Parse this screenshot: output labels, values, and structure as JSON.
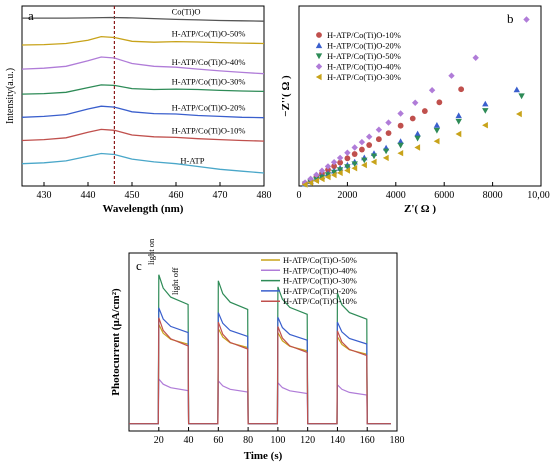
{
  "chart_data": [
    {
      "panel": "a",
      "type": "line",
      "xlabel": "Wavelength (nm)",
      "ylabel": "Intensity(a.u.)",
      "xlim": [
        425,
        480
      ],
      "xticks": [
        430,
        440,
        450,
        460,
        470,
        480
      ],
      "marker_line_x": 446,
      "series": [
        {
          "name": "Co(Ti)O",
          "color": "#555555",
          "x": [
            425,
            430,
            435,
            440,
            445,
            450,
            455,
            460,
            465,
            470,
            475,
            480
          ],
          "y": [
            9.55,
            9.55,
            9.55,
            9.56,
            9.58,
            9.56,
            9.52,
            9.48,
            9.45,
            9.42,
            9.4,
            9.38
          ]
        },
        {
          "name": "H-ATP/Co(Ti)O-50%",
          "color": "#c8a31a",
          "x": [
            425,
            430,
            435,
            440,
            443,
            446,
            450,
            455,
            460,
            465,
            470,
            475,
            480
          ],
          "y": [
            8.1,
            8.12,
            8.18,
            8.35,
            8.55,
            8.5,
            8.3,
            8.25,
            8.28,
            8.26,
            8.23,
            8.2,
            8.18
          ]
        },
        {
          "name": "H-ATP/Co(Ti)O-40%",
          "color": "#b07cd8",
          "x": [
            425,
            430,
            435,
            440,
            443,
            446,
            450,
            455,
            460,
            465,
            470,
            475,
            480
          ],
          "y": [
            6.8,
            6.85,
            6.95,
            7.25,
            7.45,
            7.4,
            7.1,
            6.95,
            6.9,
            6.8,
            6.7,
            6.62,
            6.55
          ]
        },
        {
          "name": "H-ATP/Co(Ti)O-30%",
          "color": "#2e8b57",
          "x": [
            425,
            430,
            435,
            440,
            443,
            446,
            450,
            455,
            460,
            465,
            470,
            475,
            480
          ],
          "y": [
            5.45,
            5.48,
            5.55,
            5.8,
            5.95,
            5.92,
            5.75,
            5.7,
            5.72,
            5.7,
            5.65,
            5.62,
            5.6
          ]
        },
        {
          "name": "H-ATP/Co(Ti)O-20%",
          "color": "#3a5fcd",
          "x": [
            425,
            430,
            435,
            440,
            443,
            446,
            450,
            455,
            460,
            465,
            470,
            475,
            480
          ],
          "y": [
            4.2,
            4.25,
            4.35,
            4.65,
            4.8,
            4.75,
            4.5,
            4.4,
            4.38,
            4.3,
            4.25,
            4.2,
            4.18
          ]
        },
        {
          "name": "H-ATP/Co(Ti)O-10%",
          "color": "#c0504d",
          "x": [
            425,
            430,
            435,
            440,
            443,
            446,
            450,
            455,
            460,
            465,
            470,
            475,
            480
          ],
          "y": [
            2.95,
            3.0,
            3.1,
            3.4,
            3.55,
            3.5,
            3.25,
            3.15,
            3.12,
            3.05,
            3.0,
            2.95,
            2.92
          ]
        },
        {
          "name": "H-ATP",
          "color": "#4aa7c9",
          "x": [
            425,
            430,
            435,
            440,
            443,
            446,
            450,
            455,
            460,
            465,
            470,
            475,
            480
          ],
          "y": [
            1.7,
            1.75,
            1.85,
            2.1,
            2.25,
            2.2,
            1.95,
            1.8,
            1.7,
            1.55,
            1.4,
            1.3,
            1.2
          ]
        }
      ]
    },
    {
      "panel": "b",
      "type": "scatter",
      "xlabel": "Z'( Ω )",
      "ylabel": "−Z''( Ω )",
      "xlim": [
        0,
        10000
      ],
      "xticks": [
        0,
        2000,
        4000,
        6000,
        8000,
        10000
      ],
      "xticklabels": [
        "0",
        "2000",
        "4000",
        "6000",
        "8000",
        "10,000"
      ],
      "legend_position": "top-left",
      "series": [
        {
          "name": "H-ATP/Co(Ti)O-10%",
          "marker": "circle",
          "color": "#c0504d",
          "x": [
            250,
            480,
            720,
            950,
            1200,
            1450,
            1700,
            2000,
            2300,
            2600,
            2900,
            3300,
            3700,
            4200,
            4700,
            5200,
            5800,
            6700
          ],
          "y": [
            120,
            260,
            420,
            560,
            720,
            880,
            1040,
            1230,
            1420,
            1620,
            1820,
            2080,
            2350,
            2680,
            3000,
            3330,
            3720,
            4300
          ]
        },
        {
          "name": "H-ATP/Co(Ti)O-20%",
          "marker": "triangle-up",
          "color": "#3a5fcd",
          "x": [
            250,
            480,
            720,
            950,
            1200,
            1450,
            1700,
            2000,
            2300,
            2700,
            3100,
            3600,
            4200,
            4900,
            5700,
            6600,
            7700,
            9000
          ],
          "y": [
            90,
            200,
            320,
            430,
            550,
            670,
            790,
            930,
            1070,
            1260,
            1450,
            1690,
            1980,
            2320,
            2700,
            3130,
            3650,
            4280
          ]
        },
        {
          "name": "H-ATP/Co(Ti)O-50%",
          "marker": "triangle-down",
          "color": "#2e8b57",
          "x": [
            250,
            480,
            720,
            950,
            1200,
            1450,
            1700,
            2000,
            2300,
            2700,
            3100,
            3600,
            4200,
            4900,
            5700,
            6600,
            7700,
            9200
          ],
          "y": [
            80,
            180,
            290,
            390,
            500,
            610,
            720,
            850,
            980,
            1150,
            1330,
            1550,
            1810,
            2120,
            2470,
            2870,
            3350,
            4000
          ]
        },
        {
          "name": "H-ATP/Co(Ti)O-40%",
          "marker": "diamond",
          "color": "#b07cd8",
          "x": [
            250,
            480,
            720,
            950,
            1200,
            1450,
            1700,
            2000,
            2300,
            2600,
            2900,
            3300,
            3700,
            4200,
            4800,
            5500,
            6300,
            7300,
            9400
          ],
          "y": [
            150,
            320,
            500,
            680,
            870,
            1060,
            1250,
            1480,
            1710,
            1950,
            2190,
            2500,
            2820,
            3220,
            3700,
            4260,
            4900,
            5700,
            7400
          ]
        },
        {
          "name": "H-ATP/Co(Ti)O-30%",
          "marker": "triangle-left",
          "color": "#c8a31a",
          "x": [
            250,
            480,
            720,
            950,
            1200,
            1450,
            1700,
            2000,
            2300,
            2700,
            3100,
            3600,
            4200,
            4900,
            5700,
            6600,
            7700,
            9100
          ],
          "y": [
            60,
            140,
            230,
            310,
            400,
            490,
            580,
            690,
            790,
            930,
            1070,
            1250,
            1460,
            1710,
            1990,
            2310,
            2700,
            3200
          ]
        }
      ]
    },
    {
      "panel": "c",
      "type": "line",
      "xlabel": "Time (s)",
      "ylabel": "Photocurrent (μA/cm²)",
      "xlim": [
        0,
        180
      ],
      "xticks": [
        20,
        40,
        60,
        80,
        100,
        120,
        140,
        160,
        180
      ],
      "annotations": [
        "light on",
        "light off"
      ],
      "legend_position": "top-right",
      "on_intervals": [
        [
          20,
          40
        ],
        [
          60,
          80
        ],
        [
          100,
          120
        ],
        [
          140,
          160
        ]
      ],
      "series": [
        {
          "name": "H-ATP/Co(Ti)O-50%",
          "color": "#c8a31a",
          "peak": 0.62,
          "plateau": 0.5
        },
        {
          "name": "H-ATP/Co(Ti)O-40%",
          "color": "#b07cd8",
          "peak": 0.29,
          "plateau": 0.22
        },
        {
          "name": "H-ATP/Co(Ti)O-30%",
          "color": "#2e8b57",
          "peak": 0.92,
          "plateau": 0.74
        },
        {
          "name": "H-ATP/Co(Ti)O-20%",
          "color": "#3a5fcd",
          "peak": 0.72,
          "plateau": 0.57
        },
        {
          "name": "H-ATP/Co(Ti)O-10%",
          "color": "#c0504d",
          "peak": 0.66,
          "plateau": 0.49
        }
      ]
    }
  ]
}
